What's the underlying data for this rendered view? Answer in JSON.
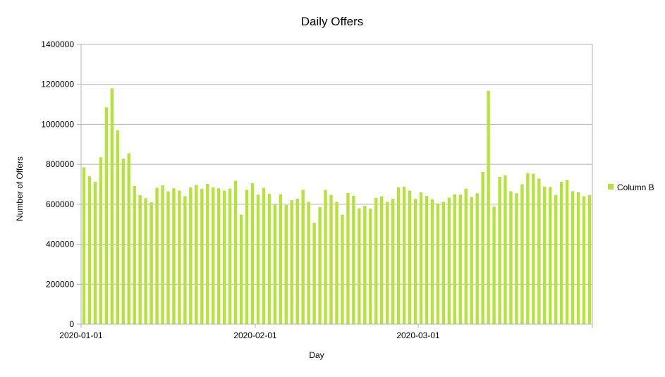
{
  "chart_data": {
    "type": "bar",
    "title": "Daily Offers",
    "xlabel": "Day",
    "ylabel": "Number of Offers",
    "ylim": [
      0,
      1400000
    ],
    "y_ticks": [
      0,
      200000,
      400000,
      600000,
      800000,
      1000000,
      1200000,
      1400000
    ],
    "y_tick_labels": [
      "0",
      "200000",
      "400000",
      "600000",
      "800000",
      "1000000",
      "1200000",
      "1400000"
    ],
    "x_tick_labels": [
      {
        "label": "2020-01-01",
        "index": 0
      },
      {
        "label": "2020-02-01",
        "index": 31
      },
      {
        "label": "2020-03-01",
        "index": 60
      }
    ],
    "grid": "horizontal",
    "legend_position": "right",
    "bar_color": "#b5e33b",
    "series": [
      {
        "name": "Column B",
        "values": [
          785000,
          740000,
          712000,
          835000,
          1085000,
          1180000,
          970000,
          828000,
          855000,
          692000,
          645000,
          630000,
          610000,
          682000,
          695000,
          665000,
          680000,
          668000,
          640000,
          684000,
          697000,
          678000,
          702000,
          684000,
          680000,
          668000,
          678000,
          718000,
          548000,
          672000,
          705000,
          648000,
          682000,
          652000,
          598000,
          650000,
          596000,
          620000,
          628000,
          672000,
          612000,
          508000,
          585000,
          672000,
          647000,
          612000,
          548000,
          656000,
          642000,
          580000,
          592000,
          578000,
          632000,
          640000,
          612000,
          627000,
          685000,
          687000,
          668000,
          627000,
          660000,
          642000,
          625000,
          603000,
          612000,
          633000,
          650000,
          648000,
          678000,
          636000,
          655000,
          762000,
          1168000,
          588000,
          737000,
          745000,
          665000,
          655000,
          700000,
          755000,
          753000,
          728000,
          688000,
          686000,
          645000,
          712000,
          722000,
          665000,
          660000,
          640000,
          645000
        ]
      }
    ]
  }
}
